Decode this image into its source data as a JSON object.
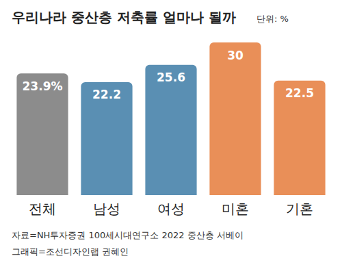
{
  "chart_data": {
    "type": "bar",
    "title": "우리나라 중산층 저축률 얼마나 될까",
    "subtitle": "단위: %",
    "categories": [
      "전체",
      "남성",
      "여성",
      "미혼",
      "기혼"
    ],
    "values": [
      23.9,
      22.2,
      25.6,
      30,
      22.5
    ],
    "value_labels": [
      "23.9%",
      "22.2",
      "25.6",
      "30",
      "22.5"
    ],
    "colors": [
      "#8c8c8c",
      "#5a8fb3",
      "#5a8fb3",
      "#e98f58",
      "#e98f58"
    ],
    "ylim": [
      0,
      30
    ],
    "yticks": [
      0,
      30
    ],
    "grid": false,
    "data_labels": true,
    "tick_labels": "x",
    "annotations": [
      "자료=NH투자증권 100세시대연구소 2022 중산층 서베이",
      "그래픽=조선디자인랩 권혜인"
    ]
  }
}
